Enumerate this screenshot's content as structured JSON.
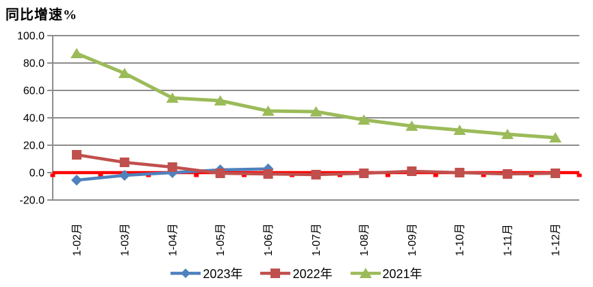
{
  "chart_data": {
    "type": "line",
    "title": "同比增速%",
    "categories": [
      "1-02月",
      "1-03月",
      "1-04月",
      "1-05月",
      "1-06月",
      "1-07月",
      "1-08月",
      "1-09月",
      "1-10月",
      "1-11月",
      "1-12月"
    ],
    "series": [
      {
        "name": "2023年",
        "marker": "diamond",
        "color": "#4F81BD",
        "values": [
          -5.5,
          -2.0,
          0.0,
          2.0,
          2.7
        ]
      },
      {
        "name": "2022年",
        "marker": "square",
        "color": "#C0504D",
        "values": [
          13.0,
          7.5,
          4.0,
          -0.5,
          -1.0,
          -1.5,
          -0.5,
          1.0,
          0.0,
          -1.0,
          -0.5
        ]
      },
      {
        "name": "2021年",
        "marker": "triangle",
        "color": "#9BBB59",
        "values": [
          87.0,
          72.5,
          54.5,
          52.5,
          45.0,
          44.5,
          38.5,
          34.0,
          31.0,
          28.0,
          25.5
        ]
      }
    ],
    "ylim": [
      -20,
      100
    ],
    "ytick_labels": [
      "100.0",
      "80.0",
      "60.0",
      "40.0",
      "20.0",
      "0.0",
      "-20.0"
    ],
    "grid": true,
    "zero_reference_line": true,
    "legend_position": "bottom",
    "colors": {
      "grid": "#8C8C8C",
      "zero_line": "#FF0000",
      "text": "#000000"
    }
  }
}
